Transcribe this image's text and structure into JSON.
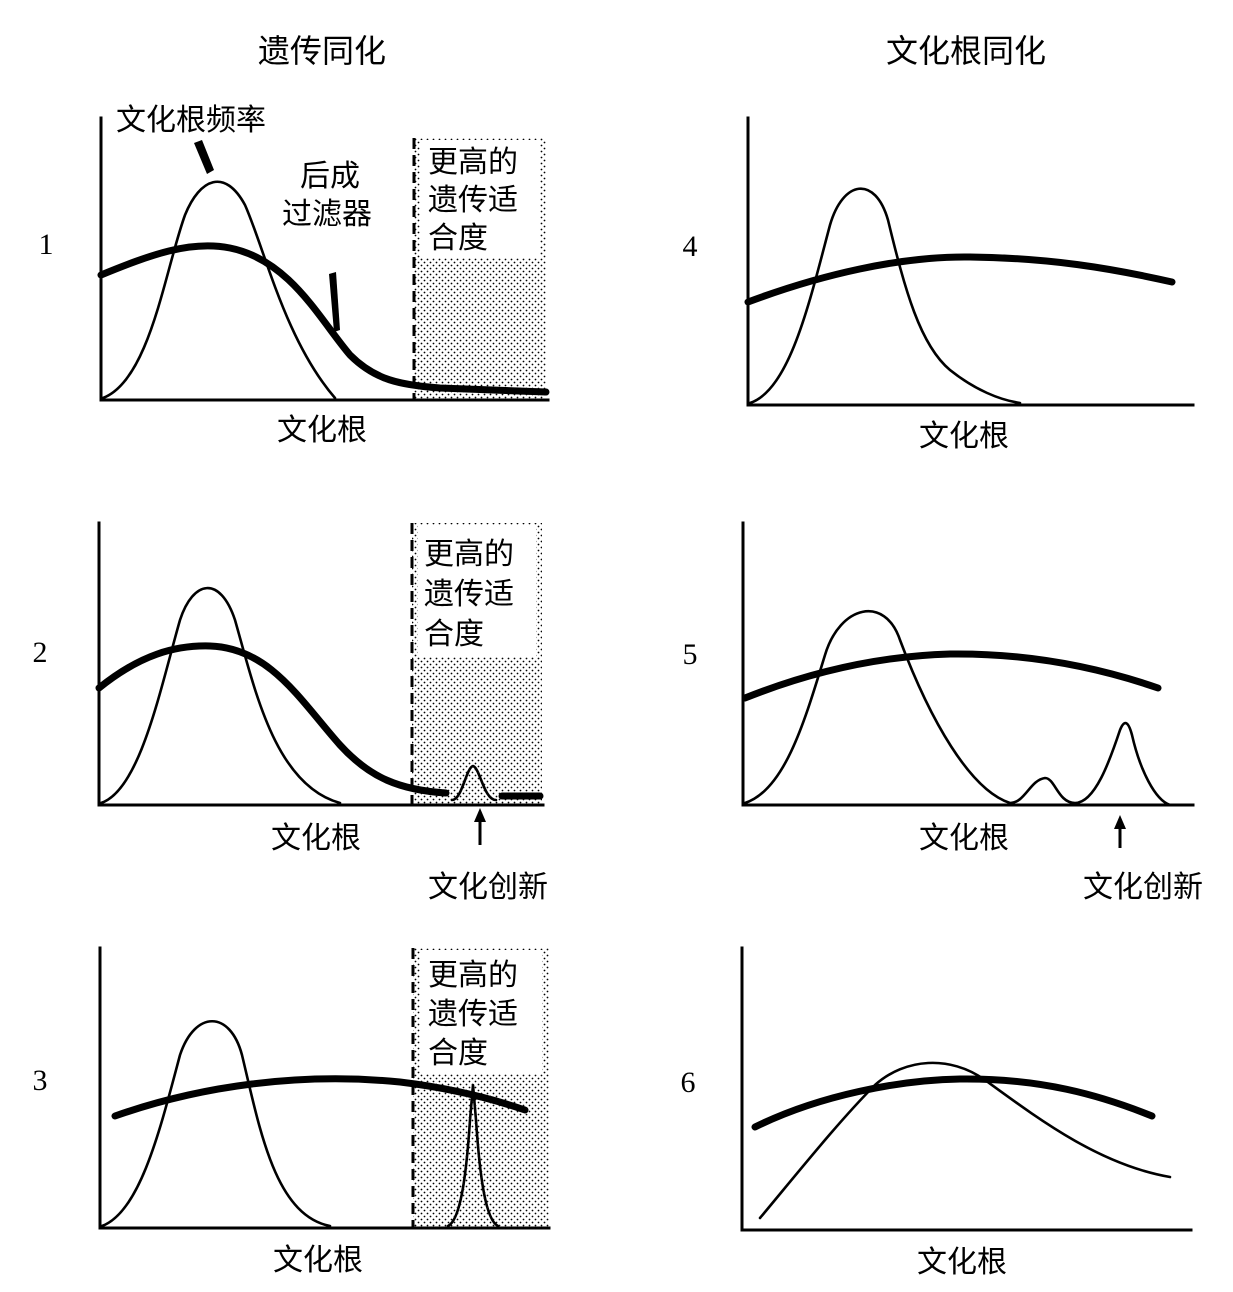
{
  "columns": {
    "left_title": "遗传同化",
    "right_title": "文化根同化"
  },
  "labels": {
    "axis_x": "文化根",
    "frequency": "文化根频率",
    "filter_line1": "后成",
    "filter_line2": "过滤器",
    "fitness_line1": "更高的",
    "fitness_line2": "遗传适",
    "fitness_line3": "合度",
    "innovation": "文化创新"
  },
  "panels": [
    {
      "number": "1"
    },
    {
      "number": "2"
    },
    {
      "number": "3"
    },
    {
      "number": "4"
    },
    {
      "number": "5"
    },
    {
      "number": "6"
    }
  ],
  "colors": {
    "ink": "#000000",
    "background": "#ffffff",
    "stipple": "#000000"
  }
}
